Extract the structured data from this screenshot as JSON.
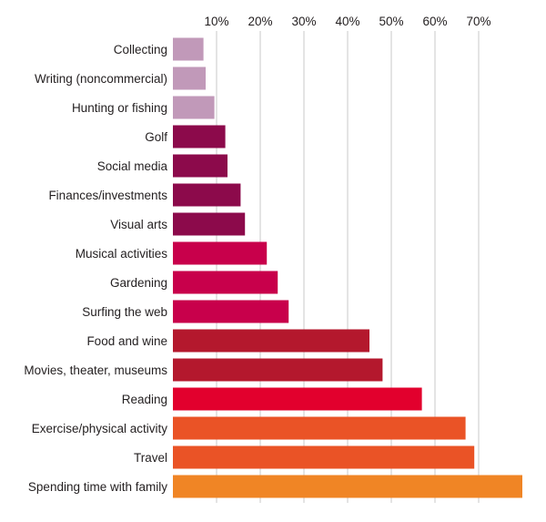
{
  "chart_data": {
    "type": "bar",
    "orientation": "horizontal",
    "title": "",
    "xlabel": "",
    "ylabel": "",
    "xlim": [
      0,
      80
    ],
    "xticks": [
      10,
      20,
      30,
      40,
      50,
      60,
      70
    ],
    "xtick_labels": [
      "10%",
      "20%",
      "30%",
      "40%",
      "50%",
      "60%",
      "70%"
    ],
    "tick_position": "top",
    "grid": true,
    "categories": [
      "Collecting",
      "Writing (noncommercial)",
      "Hunting or fishing",
      "Golf",
      "Social media",
      "Finances/investments",
      "Visual arts",
      "Musical activities",
      "Gardening",
      "Surfing the web",
      "Food and wine",
      "Movies, theater, museums",
      "Reading",
      "Exercise/physical activity",
      "Travel",
      "Spending time with family"
    ],
    "values": [
      7,
      7.5,
      9.5,
      12,
      12.5,
      15.5,
      16.5,
      21.5,
      24,
      26.5,
      45,
      48,
      57,
      67,
      69,
      80
    ],
    "colors": [
      "#c199b9",
      "#c199b9",
      "#c199b9",
      "#8c0a4b",
      "#8c0a4b",
      "#8c0a4b",
      "#8c0a4b",
      "#c8004b",
      "#c8004b",
      "#c8004b",
      "#b4182d",
      "#b4182d",
      "#e2002d",
      "#ea5326",
      "#ea5326",
      "#f08525"
    ]
  }
}
